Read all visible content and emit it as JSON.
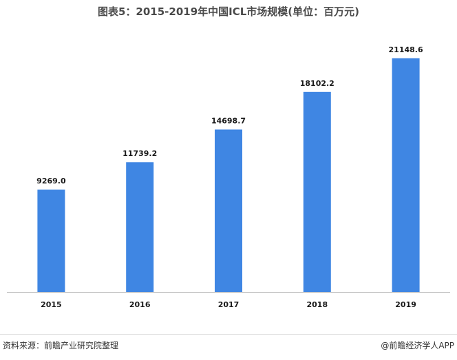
{
  "title": "图表5：2015-2019年中国ICL市场规模(单位：百万元)",
  "source": "资料来源：前瞻产业研究院整理",
  "credit": "@前瞻经济学人APP",
  "colors": {
    "bar": "#3f86e3",
    "axis": "#bfbfbf",
    "text": "#1a1a1a",
    "title": "#4a4a4a"
  },
  "chart_data": {
    "type": "bar",
    "title": "图表5：2015-2019年中国ICL市场规模(单位：百万元)",
    "categories": [
      "2015",
      "2016",
      "2017",
      "2018",
      "2019"
    ],
    "values": [
      9269.0,
      11739.2,
      14698.7,
      18102.2,
      21148.6
    ],
    "data_labels": [
      "9269.0",
      "11739.2",
      "14698.7",
      "18102.2",
      "21148.6"
    ],
    "xlabel": "",
    "ylabel": "",
    "ylim": [
      0,
      23000
    ],
    "grid": false,
    "legend": "none"
  }
}
